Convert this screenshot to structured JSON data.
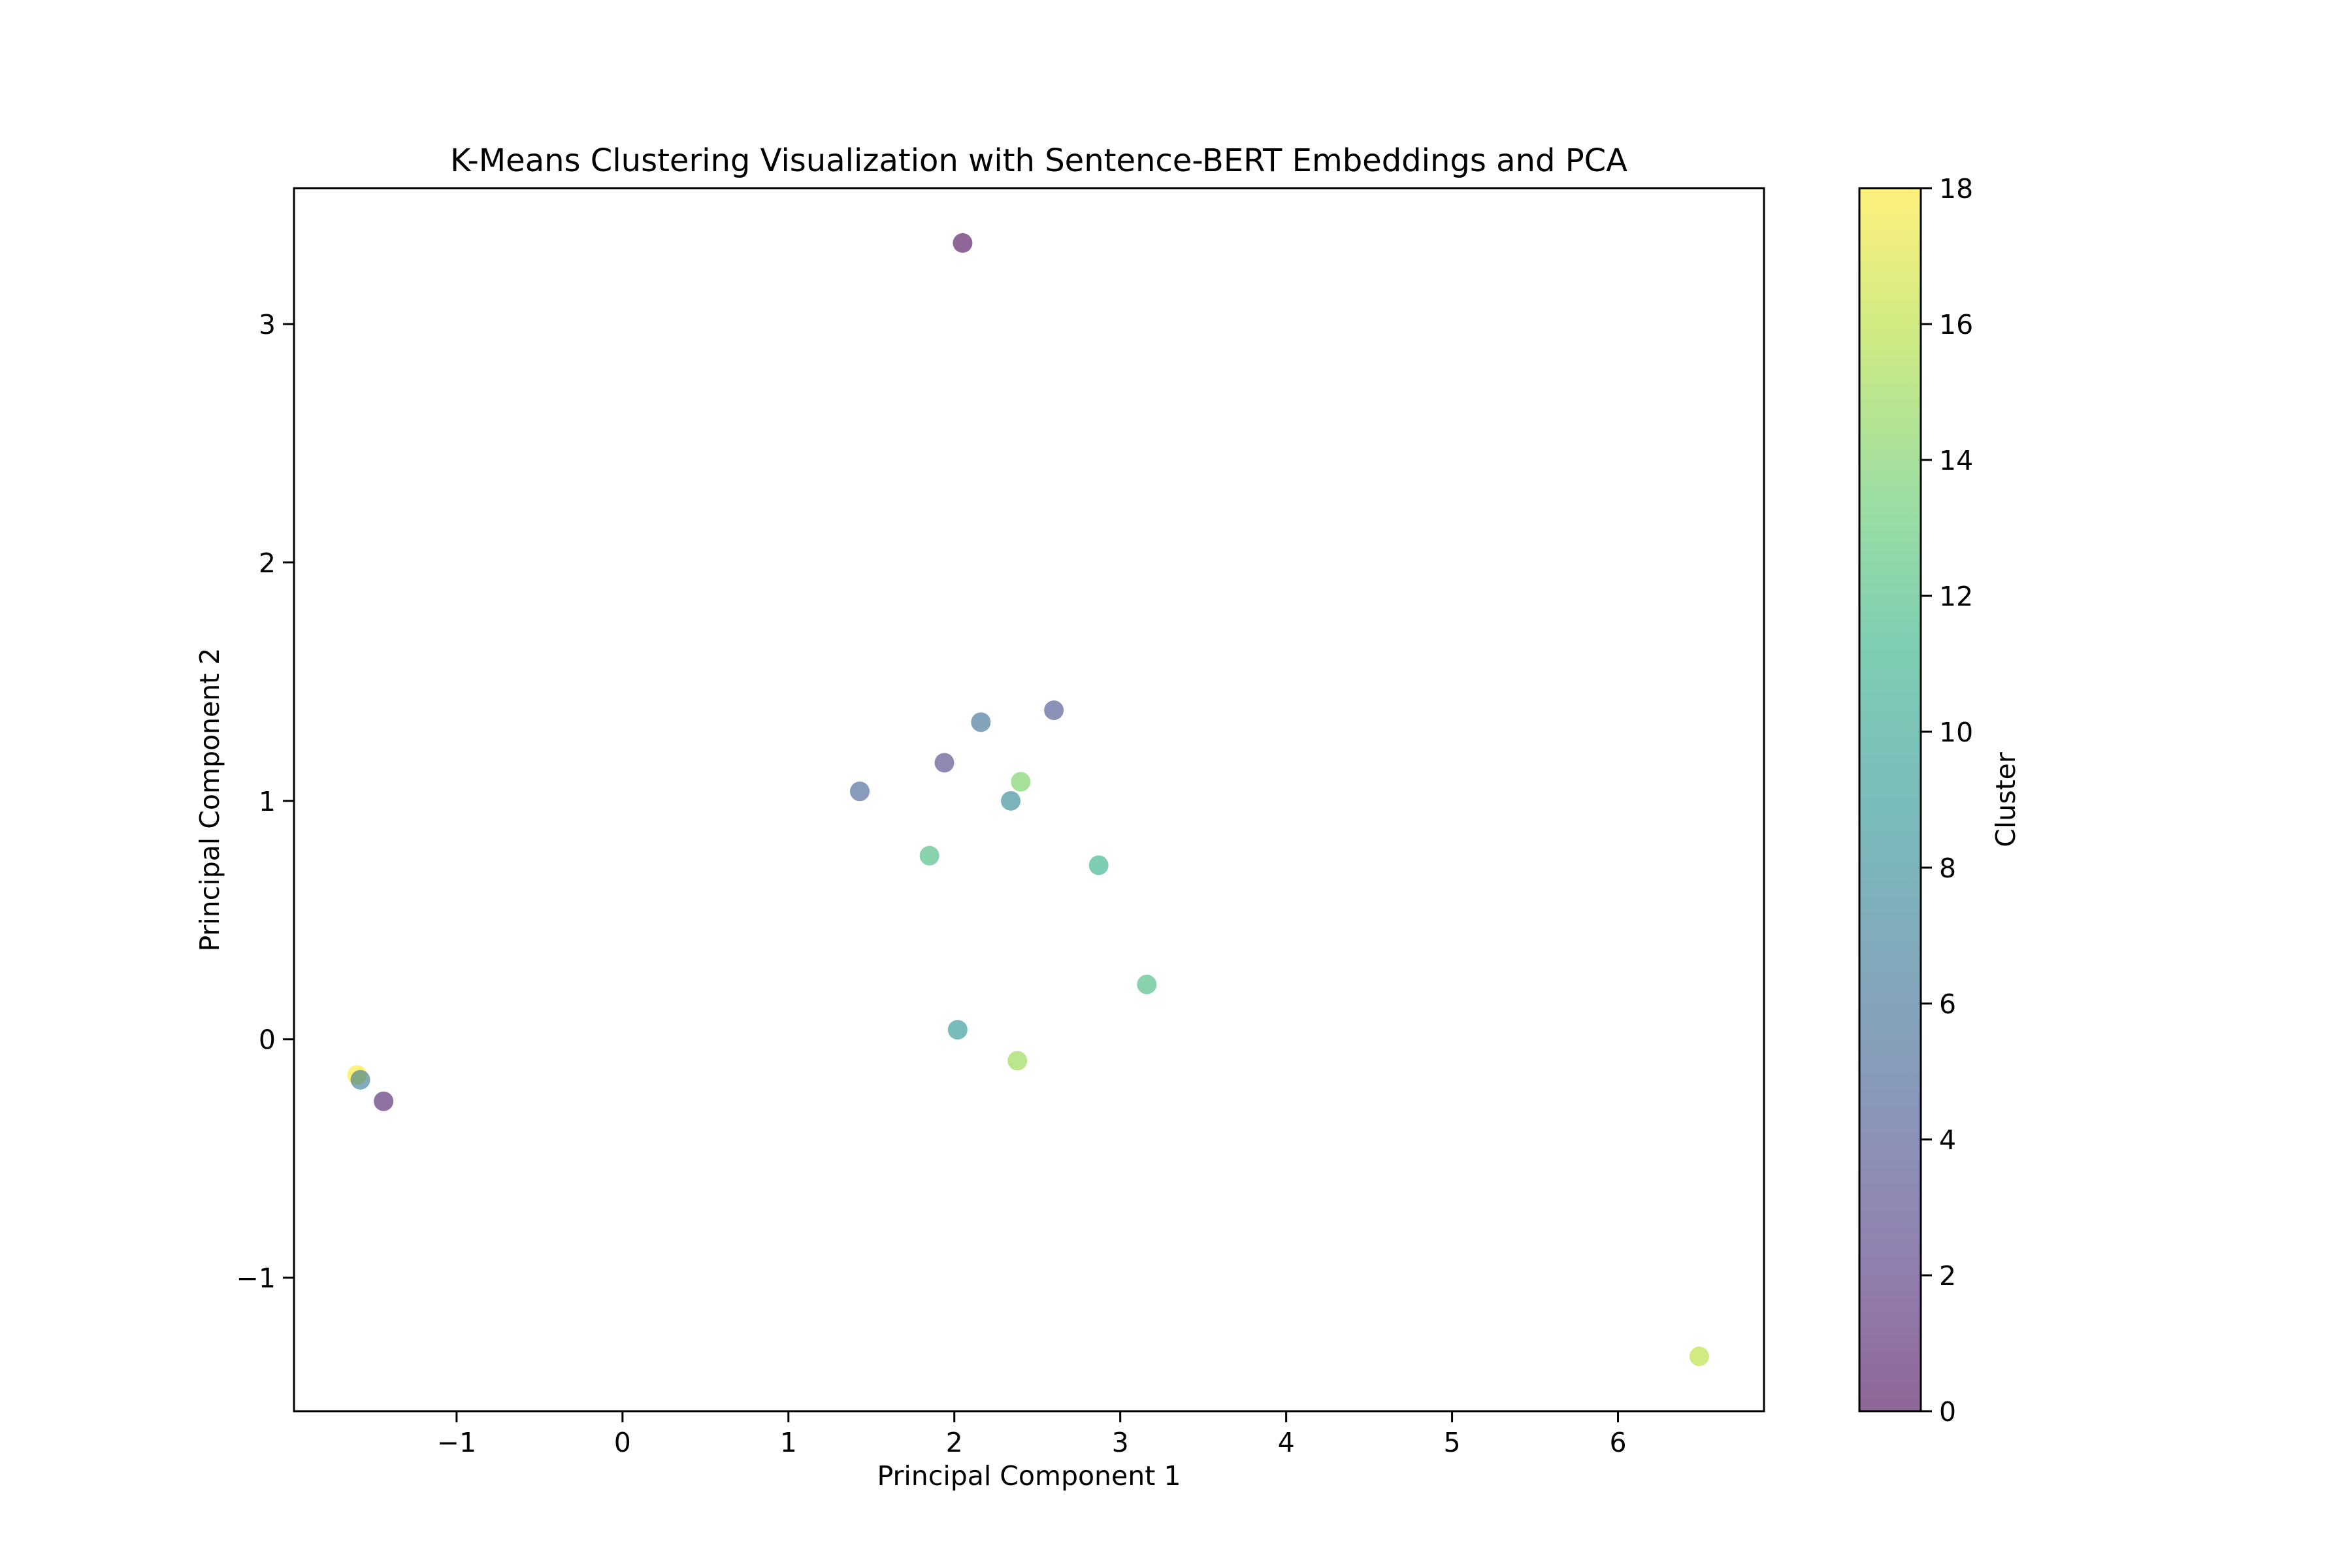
{
  "chart_data": {
    "type": "scatter",
    "title": "K-Means Clustering Visualization with Sentence-BERT Embeddings and PCA",
    "xlabel": "Principal Component 1",
    "ylabel": "Principal Component 2",
    "xlim": [
      -1.98,
      6.88
    ],
    "ylim": [
      -1.56,
      3.57
    ],
    "xticks": [
      -1,
      0,
      1,
      2,
      3,
      4,
      5,
      6
    ],
    "yticks": [
      -1,
      0,
      1,
      2,
      3
    ],
    "grid": false,
    "legend": "none",
    "colorbar": {
      "label": "Cluster",
      "range": [
        0,
        18
      ],
      "ticks": [
        0,
        2,
        4,
        6,
        8,
        10,
        12,
        14,
        16,
        18
      ],
      "colormap": "viridis",
      "alpha": 0.6
    },
    "points": [
      {
        "x": 2.05,
        "y": 3.34,
        "cluster": 0
      },
      {
        "x": 2.6,
        "y": 1.38,
        "cluster": 4
      },
      {
        "x": 2.16,
        "y": 1.33,
        "cluster": 6
      },
      {
        "x": 1.94,
        "y": 1.16,
        "cluster": 3
      },
      {
        "x": 1.43,
        "y": 1.04,
        "cluster": 5
      },
      {
        "x": 2.4,
        "y": 1.08,
        "cluster": 14
      },
      {
        "x": 2.34,
        "y": 1.0,
        "cluster": 8
      },
      {
        "x": 1.85,
        "y": 0.77,
        "cluster": 12
      },
      {
        "x": 2.87,
        "y": 0.73,
        "cluster": 11
      },
      {
        "x": 3.16,
        "y": 0.23,
        "cluster": 12
      },
      {
        "x": 2.02,
        "y": 0.04,
        "cluster": 9
      },
      {
        "x": 2.38,
        "y": -0.09,
        "cluster": 15
      },
      {
        "x": -1.6,
        "y": -0.15,
        "cluster": 18
      },
      {
        "x": -1.58,
        "y": -0.17,
        "cluster": 7
      },
      {
        "x": -1.44,
        "y": -0.26,
        "cluster": 1
      },
      {
        "x": 6.49,
        "y": -1.33,
        "cluster": 16
      }
    ]
  }
}
